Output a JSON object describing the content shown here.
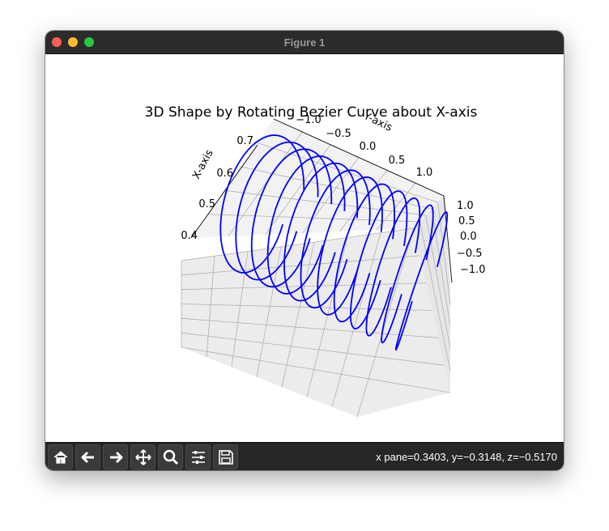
{
  "window": {
    "title": "Figure 1"
  },
  "toolbar": {
    "buttons": [
      {
        "name": "home-icon"
      },
      {
        "name": "back-arrow-icon"
      },
      {
        "name": "forward-arrow-icon"
      },
      {
        "name": "pan-move-icon"
      },
      {
        "name": "zoom-magnifier-icon"
      },
      {
        "name": "configure-subplots-icon"
      },
      {
        "name": "save-disk-icon"
      }
    ],
    "coords": "x pane=0.3403, y=−0.3148, z=−0.5170"
  },
  "chart_data": {
    "type": "line",
    "projection": "3d",
    "title": "3D Shape by Rotating Bezier Curve about X-axis",
    "xlabel": "X-axis",
    "ylabel": "Y-axis",
    "zlabel": "",
    "x_ticks": [
      "0.4",
      "0.5",
      "0.6",
      "0.7"
    ],
    "y_ticks": [
      "−1.0",
      "−0.5",
      "0.0",
      "0.5",
      "1.0"
    ],
    "z_ticks": [
      "1.0",
      "0.5",
      "0.0",
      "−0.5",
      "−1.0"
    ],
    "xlim": [
      0.34,
      0.75
    ],
    "ylim": [
      -1.0,
      1.0
    ],
    "zlim": [
      -1.0,
      1.0
    ],
    "series_color": "#0000ff",
    "n_profile_curves": 12,
    "grid": true
  }
}
